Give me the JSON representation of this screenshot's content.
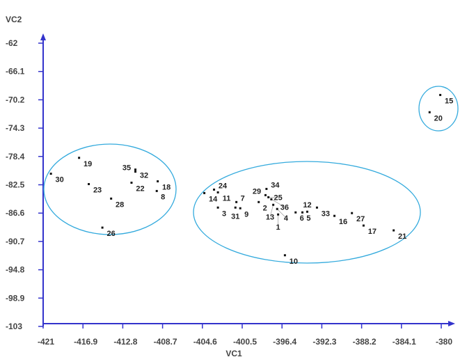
{
  "chart_data": {
    "type": "scatter",
    "xlabel": "VC1",
    "ylabel": "VC2",
    "xlim": [
      -421,
      -380
    ],
    "ylim": [
      -103,
      -62
    ],
    "xticks": [
      "-421",
      "-416.9",
      "-412.8",
      "-408.7",
      "-404.6",
      "-400.5",
      "-396.4",
      "-392.3",
      "-388.2",
      "-384.1",
      "-380"
    ],
    "yticks": [
      "-62",
      "-66.1",
      "-70.2",
      "-74.3",
      "-78.4",
      "-82.5",
      "-86.6",
      "-90.7",
      "-94.8",
      "-98.9",
      "-103"
    ],
    "grid": false,
    "axis_color": "#3333cc",
    "ellipse_color": "#33aadd",
    "points": [
      {
        "label": "30",
        "x": -420.2,
        "y": -80.9
      },
      {
        "label": "19",
        "x": -417.3,
        "y": -78.6
      },
      {
        "label": "23",
        "x": -416.3,
        "y": -82.4
      },
      {
        "label": "28",
        "x": -414.0,
        "y": -84.5
      },
      {
        "label": "26",
        "x": -414.9,
        "y": -88.7
      },
      {
        "label": "32",
        "x": -411.5,
        "y": -80.3
      },
      {
        "label": "35",
        "x": -411.5,
        "y": -80.6
      },
      {
        "label": "22",
        "x": -411.9,
        "y": -82.2
      },
      {
        "label": "18",
        "x": -409.2,
        "y": -82.0
      },
      {
        "label": "8",
        "x": -409.3,
        "y": -83.4
      },
      {
        "label": "14",
        "x": -404.4,
        "y": -83.7
      },
      {
        "label": "24",
        "x": -403.4,
        "y": -83.2
      },
      {
        "label": "11",
        "x": -403.0,
        "y": -83.6
      },
      {
        "label": "3",
        "x": -403.0,
        "y": -85.8
      },
      {
        "label": "7",
        "x": -401.1,
        "y": -85.0
      },
      {
        "label": "31",
        "x": -401.2,
        "y": -85.8
      },
      {
        "label": "9",
        "x": -400.7,
        "y": -85.9
      },
      {
        "label": "2",
        "x": -398.8,
        "y": -85.0
      },
      {
        "label": "34",
        "x": -398.0,
        "y": -83.1
      },
      {
        "label": "29",
        "x": -398.1,
        "y": -84.0
      },
      {
        "label": "25",
        "x": -397.8,
        "y": -84.3
      },
      {
        "label": "36",
        "x": -397.5,
        "y": -84.6
      },
      {
        "label": "13",
        "x": -397.3,
        "y": -85.4
      },
      {
        "label": "4",
        "x": -396.9,
        "y": -86.0
      },
      {
        "label": "1",
        "x": -396.8,
        "y": -86.8
      },
      {
        "label": "6",
        "x": -395.0,
        "y": -86.5
      },
      {
        "label": "5",
        "x": -394.3,
        "y": -86.5
      },
      {
        "label": "12",
        "x": -393.8,
        "y": -86.4
      },
      {
        "label": "33",
        "x": -392.8,
        "y": -85.8
      },
      {
        "label": "16",
        "x": -391.0,
        "y": -87.0
      },
      {
        "label": "27",
        "x": -389.2,
        "y": -86.6
      },
      {
        "label": "17",
        "x": -388.0,
        "y": -88.4
      },
      {
        "label": "21",
        "x": -384.9,
        "y": -89.1
      },
      {
        "label": "10",
        "x": -396.1,
        "y": -92.7
      },
      {
        "label": "15",
        "x": -380.1,
        "y": -69.5
      },
      {
        "label": "20",
        "x": -381.2,
        "y": -72.0
      }
    ]
  }
}
